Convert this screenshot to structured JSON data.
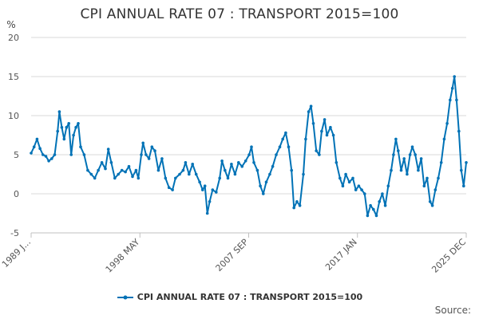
{
  "chart_data": {
    "type": "line",
    "title": "CPI ANNUAL RATE 07 : TRANSPORT 2015=100",
    "ylabel": "%",
    "xlabel": "",
    "ylim": [
      -5,
      20
    ],
    "yticks": [
      -5,
      0,
      5,
      10,
      15,
      20
    ],
    "xtick_labels": [
      "1989 J...",
      "1998 MAY",
      "2007 SEP",
      "2017 JAN",
      "2025 DEC"
    ],
    "x_range": [
      1989.0,
      2025.92
    ],
    "grid": "horizontal",
    "legend_position": "bottom",
    "series_color": "#0072b6",
    "series": [
      {
        "name": "CPI ANNUAL RATE 07 : TRANSPORT 2015=100",
        "points": [
          [
            1989.0,
            5.2
          ],
          [
            1989.25,
            6.0
          ],
          [
            1989.5,
            7.0
          ],
          [
            1989.75,
            5.8
          ],
          [
            1990.0,
            5.0
          ],
          [
            1990.25,
            4.8
          ],
          [
            1990.5,
            4.2
          ],
          [
            1990.75,
            4.5
          ],
          [
            1991.0,
            5.0
          ],
          [
            1991.25,
            8.0
          ],
          [
            1991.4,
            10.5
          ],
          [
            1991.6,
            8.5
          ],
          [
            1991.8,
            7.0
          ],
          [
            1992.0,
            8.5
          ],
          [
            1992.2,
            9.0
          ],
          [
            1992.4,
            5.0
          ],
          [
            1992.6,
            7.5
          ],
          [
            1992.8,
            8.5
          ],
          [
            1993.0,
            9.0
          ],
          [
            1993.2,
            6.0
          ],
          [
            1993.5,
            5.0
          ],
          [
            1993.8,
            3.0
          ],
          [
            1994.1,
            2.5
          ],
          [
            1994.4,
            2.0
          ],
          [
            1994.7,
            3.0
          ],
          [
            1995.0,
            4.0
          ],
          [
            1995.3,
            3.2
          ],
          [
            1995.55,
            5.7
          ],
          [
            1995.8,
            4.0
          ],
          [
            1996.1,
            2.0
          ],
          [
            1996.4,
            2.5
          ],
          [
            1996.7,
            3.0
          ],
          [
            1997.0,
            2.8
          ],
          [
            1997.3,
            3.5
          ],
          [
            1997.6,
            2.2
          ],
          [
            1997.9,
            3.0
          ],
          [
            1998.1,
            2.0
          ],
          [
            1998.35,
            5.0
          ],
          [
            1998.5,
            6.5
          ],
          [
            1998.75,
            5.0
          ],
          [
            1999.0,
            4.5
          ],
          [
            1999.25,
            6.0
          ],
          [
            1999.5,
            5.5
          ],
          [
            1999.8,
            3.0
          ],
          [
            2000.1,
            4.5
          ],
          [
            2000.4,
            2.0
          ],
          [
            2000.7,
            0.8
          ],
          [
            2001.0,
            0.5
          ],
          [
            2001.25,
            2.0
          ],
          [
            2001.6,
            2.5
          ],
          [
            2001.9,
            3.0
          ],
          [
            2002.1,
            4.0
          ],
          [
            2002.4,
            2.5
          ],
          [
            2002.7,
            3.8
          ],
          [
            2003.0,
            2.5
          ],
          [
            2003.3,
            1.5
          ],
          [
            2003.55,
            0.5
          ],
          [
            2003.75,
            1.0
          ],
          [
            2003.95,
            -2.5
          ],
          [
            2004.15,
            -1.0
          ],
          [
            2004.4,
            0.5
          ],
          [
            2004.7,
            0.2
          ],
          [
            2005.0,
            2.0
          ],
          [
            2005.2,
            4.2
          ],
          [
            2005.45,
            3.0
          ],
          [
            2005.7,
            2.0
          ],
          [
            2006.0,
            3.8
          ],
          [
            2006.3,
            2.5
          ],
          [
            2006.6,
            4.0
          ],
          [
            2006.9,
            3.5
          ],
          [
            2007.2,
            4.2
          ],
          [
            2007.5,
            5.0
          ],
          [
            2007.7,
            6.0
          ],
          [
            2007.9,
            4.0
          ],
          [
            2008.2,
            3.0
          ],
          [
            2008.45,
            1.0
          ],
          [
            2008.7,
            0.0
          ],
          [
            2008.95,
            1.5
          ],
          [
            2009.25,
            2.5
          ],
          [
            2009.5,
            3.5
          ],
          [
            2009.8,
            5.0
          ],
          [
            2010.1,
            6.0
          ],
          [
            2010.35,
            7.0
          ],
          [
            2010.6,
            7.8
          ],
          [
            2010.85,
            6.0
          ],
          [
            2011.1,
            3.0
          ],
          [
            2011.3,
            -1.8
          ],
          [
            2011.55,
            -1.0
          ],
          [
            2011.8,
            -1.5
          ],
          [
            2012.1,
            2.5
          ],
          [
            2012.3,
            7.0
          ],
          [
            2012.55,
            10.5
          ],
          [
            2012.75,
            11.2
          ],
          [
            2012.95,
            9.0
          ],
          [
            2013.2,
            5.5
          ],
          [
            2013.45,
            5.0
          ],
          [
            2013.65,
            8.0
          ],
          [
            2013.9,
            9.5
          ],
          [
            2014.1,
            7.5
          ],
          [
            2014.4,
            8.5
          ],
          [
            2014.65,
            7.5
          ],
          [
            2014.9,
            4.0
          ],
          [
            2015.2,
            2.0
          ],
          [
            2015.45,
            1.0
          ],
          [
            2015.7,
            2.5
          ],
          [
            2016.0,
            1.5
          ],
          [
            2016.3,
            2.0
          ],
          [
            2016.55,
            0.5
          ],
          [
            2016.8,
            1.0
          ],
          [
            2017.05,
            0.5
          ],
          [
            2017.3,
            0.0
          ],
          [
            2017.55,
            -2.8
          ],
          [
            2017.8,
            -1.5
          ],
          [
            2018.05,
            -2.0
          ],
          [
            2018.3,
            -2.8
          ],
          [
            2018.55,
            -1.0
          ],
          [
            2018.8,
            0.0
          ],
          [
            2019.05,
            -1.5
          ],
          [
            2019.3,
            1.0
          ],
          [
            2019.55,
            3.0
          ],
          [
            2019.75,
            5.0
          ],
          [
            2019.95,
            7.0
          ],
          [
            2020.15,
            5.5
          ],
          [
            2020.4,
            3.0
          ],
          [
            2020.65,
            4.5
          ],
          [
            2020.9,
            2.5
          ],
          [
            2021.15,
            5.0
          ],
          [
            2021.35,
            6.0
          ],
          [
            2021.6,
            5.0
          ],
          [
            2021.85,
            3.0
          ],
          [
            2022.1,
            4.5
          ],
          [
            2022.35,
            1.0
          ],
          [
            2022.6,
            2.0
          ],
          [
            2022.85,
            -1.0
          ],
          [
            2023.05,
            -1.5
          ],
          [
            2023.3,
            0.5
          ],
          [
            2023.55,
            2.0
          ],
          [
            2023.8,
            4.0
          ],
          [
            2024.05,
            7.0
          ],
          [
            2024.3,
            9.0
          ],
          [
            2024.55,
            12.0
          ],
          [
            2024.75,
            13.5
          ],
          [
            2024.92,
            15.0
          ],
          [
            2025.1,
            12.0
          ],
          [
            2025.3,
            8.0
          ],
          [
            2025.5,
            3.0
          ],
          [
            2025.7,
            1.0
          ],
          [
            2025.92,
            4.0
          ]
        ]
      }
    ]
  },
  "source_label": "Source:"
}
